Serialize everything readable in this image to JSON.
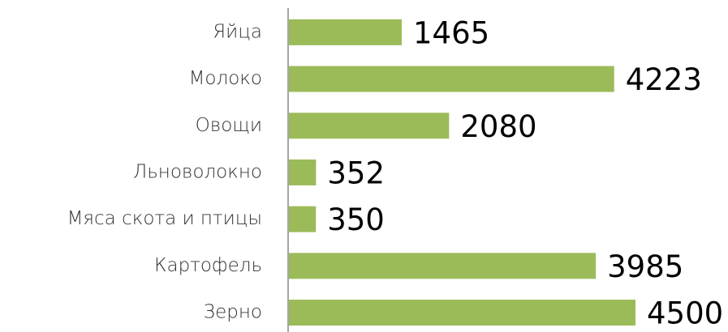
{
  "chart_data": {
    "type": "bar",
    "orientation": "horizontal",
    "categories": [
      "Яйца",
      "Молоко",
      "Овощи",
      "Льноволокно",
      "Мяса скота и птицы",
      "Картофель",
      "Зерно"
    ],
    "values": [
      1465,
      4223,
      2080,
      352,
      350,
      3985,
      4500
    ],
    "color": "#9bbb59"
  }
}
